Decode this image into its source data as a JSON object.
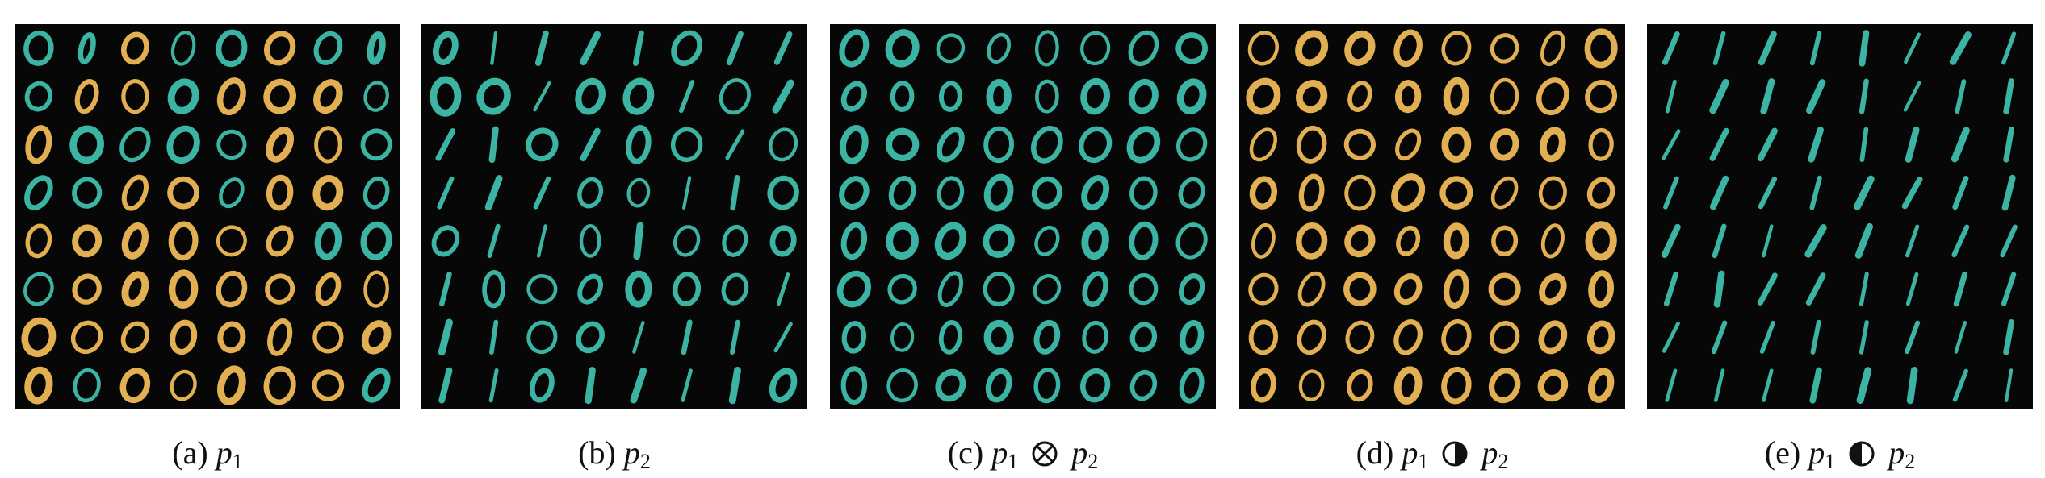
{
  "colors": {
    "teal": "#3cb4a4",
    "gold": "#e2b052",
    "background": "#070707"
  },
  "panels": [
    {
      "label": "(a)",
      "sym": "",
      "cells": [
        "Tz",
        "Ti",
        "Gz",
        "Tz",
        "Tz",
        "Gz",
        "Tz",
        "Ti",
        "Tz",
        "Gz",
        "Gz",
        "Tz",
        "Gz",
        "Gz",
        "Gz",
        "Tz",
        "Gz",
        "Tz",
        "Tz",
        "Tz",
        "Tz",
        "Gz",
        "Gz",
        "Tz",
        "Tz",
        "Tz",
        "Gz",
        "Gz",
        "Tz",
        "Gz",
        "Gz",
        "Tz",
        "Gz",
        "Gz",
        "Gz",
        "Gz",
        "Gz",
        "Gz",
        "Tz",
        "Tz",
        "Tz",
        "Gz",
        "Gz",
        "Gz",
        "Gz",
        "Gz",
        "Gz",
        "Gz",
        "Gz",
        "Gz",
        "Gz",
        "Gz",
        "Gz",
        "Gz",
        "Gz",
        "Gz",
        "Gz",
        "Tz",
        "Gz",
        "Gz",
        "Gz",
        "Gz",
        "Gz",
        "Tz"
      ]
    },
    {
      "label": "(b)",
      "sym": "",
      "cells": [
        "Tz",
        "To",
        "To",
        "To",
        "To",
        "Tz",
        "To",
        "To",
        "Tz",
        "Tz",
        "To",
        "Tz",
        "Tz",
        "To",
        "Tz",
        "To",
        "To",
        "To",
        "Tz",
        "To",
        "Tz",
        "Tz",
        "To",
        "Tz",
        "To",
        "To",
        "To",
        "Tz",
        "Tz",
        "To",
        "To",
        "Tz",
        "Tz",
        "To",
        "To",
        "Tz",
        "To",
        "Tz",
        "Tz",
        "Tz",
        "To",
        "Tz",
        "Tz",
        "Tz",
        "Tz",
        "Tz",
        "Tz",
        "To",
        "To",
        "To",
        "Tz",
        "Tz",
        "To",
        "To",
        "To",
        "To",
        "To",
        "To",
        "Tz",
        "To",
        "To",
        "To",
        "To",
        "Tz"
      ]
    },
    {
      "label": "(c)",
      "sym": "otimes",
      "cells": [
        "Tz",
        "Tz",
        "Tz",
        "Tz",
        "Tz",
        "Tz",
        "Tz",
        "Tz",
        "Tz",
        "Tz",
        "Tz",
        "Tz",
        "Tz",
        "Tz",
        "Tz",
        "Tz",
        "Tz",
        "Tz",
        "Tz",
        "Tz",
        "Tz",
        "Tz",
        "Tz",
        "Tz",
        "Tz",
        "Tz",
        "Tz",
        "Tz",
        "Tz",
        "Tz",
        "Tz",
        "Tz",
        "Tz",
        "Tz",
        "Tz",
        "Tz",
        "Tz",
        "Tz",
        "Tz",
        "Tz",
        "Tz",
        "Tz",
        "Tz",
        "Tz",
        "Tz",
        "Tz",
        "Tz",
        "Tz",
        "Tz",
        "Tz",
        "Tz",
        "Tz",
        "Tz",
        "Tz",
        "Tz",
        "Tz",
        "Tz",
        "Tz",
        "Tz",
        "Tz",
        "Tz",
        "Tz",
        "Tz",
        "Tz"
      ]
    },
    {
      "label": "(d)",
      "sym": "halfright",
      "cells": [
        "Gz",
        "Gz",
        "Gz",
        "Gz",
        "Gz",
        "Gz",
        "Gz",
        "Gz",
        "Gz",
        "Gz",
        "Gz",
        "Gz",
        "Gz",
        "Gz",
        "Gz",
        "Gz",
        "Gz",
        "Gz",
        "Gz",
        "Gz",
        "Gz",
        "Gz",
        "Gz",
        "Gz",
        "Gz",
        "Gz",
        "Gz",
        "Gz",
        "Gz",
        "Gz",
        "Gz",
        "Gz",
        "Gz",
        "Gz",
        "Gz",
        "Gz",
        "Gz",
        "Gz",
        "Gz",
        "Gz",
        "Gz",
        "Gz",
        "Gz",
        "Gz",
        "Gz",
        "Gz",
        "Gz",
        "Gz",
        "Gz",
        "Gz",
        "Gz",
        "Gz",
        "Gz",
        "Gz",
        "Gz",
        "Gz",
        "Gz",
        "Gz",
        "Gz",
        "Gz",
        "Gz",
        "Gz",
        "Gz",
        "Gz"
      ]
    },
    {
      "label": "(e)",
      "sym": "halfleft",
      "cells": [
        "To",
        "To",
        "To",
        "To",
        "To",
        "To",
        "To",
        "To",
        "To",
        "To",
        "To",
        "To",
        "To",
        "To",
        "To",
        "To",
        "To",
        "To",
        "To",
        "To",
        "To",
        "To",
        "To",
        "To",
        "To",
        "To",
        "To",
        "To",
        "To",
        "To",
        "To",
        "To",
        "To",
        "To",
        "To",
        "To",
        "To",
        "To",
        "To",
        "To",
        "To",
        "To",
        "To",
        "To",
        "To",
        "To",
        "To",
        "To",
        "To",
        "To",
        "To",
        "To",
        "To",
        "To",
        "To",
        "To",
        "To",
        "To",
        "To",
        "To",
        "To",
        "To",
        "To",
        "To"
      ]
    }
  ]
}
